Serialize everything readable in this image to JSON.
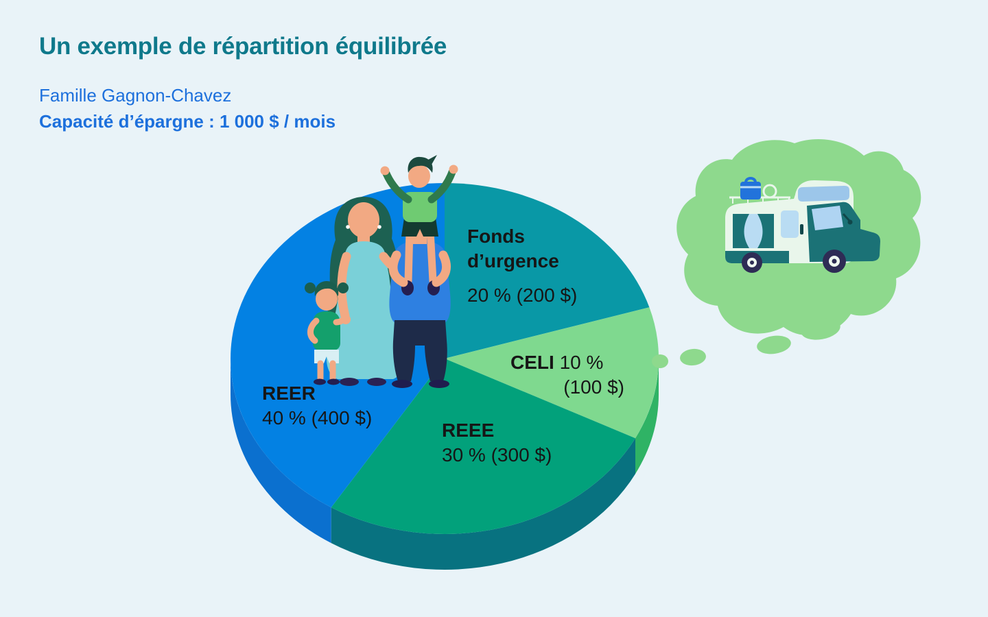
{
  "theme": {
    "bg": "#E9F3F8",
    "title_color": "#0F798B",
    "subtitle_color": "#1D70DC",
    "label_color": "#161616",
    "bubble_green": "#8ED98D"
  },
  "header": {
    "title": "Un exemple de répartition équilibrée",
    "family": "Famille Gagnon-Chavez",
    "capacity": "Capacité d’épargne : 1 000 $ / mois"
  },
  "chart_data": {
    "type": "pie",
    "style": "3d-extruded",
    "title": "Un exemple de répartition équilibrée",
    "subtitle": "Famille Gagnon-Chavez — Capacité d’épargne : 1 000 $ / mois",
    "total": 1000,
    "unit": "$ / mois",
    "direction": "clockwise",
    "start_angle_deg": 0,
    "legend_position": "labels-on-slices",
    "slices": [
      {
        "label": "Fonds d’urgence",
        "percent": 20,
        "amount": 200,
        "value_label": "20 % (200 $)",
        "color": "#0998A6",
        "side_color": "#067582",
        "draw_from": 0,
        "draw_to": 73
      },
      {
        "label": "CELI",
        "percent": 10,
        "amount": 100,
        "value_label": "10 % (100 $)",
        "color": "#7FD98F",
        "side_color": "#2FB365",
        "draw_from": 73,
        "draw_to": 117
      },
      {
        "label": "REEE",
        "percent": 30,
        "amount": 300,
        "value_label": "30 % (300 $)",
        "color": "#02A17B",
        "side_color": "#087280",
        "draw_from": 117,
        "draw_to": 212
      },
      {
        "label": "REER",
        "percent": 40,
        "amount": 400,
        "value_label": "40 % (400 $)",
        "color": "#0381E3",
        "side_color": "#0B70CF",
        "draw_from": 212,
        "draw_to": 360
      }
    ]
  },
  "pie_labels": {
    "fonds_line1": "Fonds",
    "fonds_line2": "d’urgence",
    "fonds_value": "20 % (200 $)",
    "celi_name": "CELI",
    "celi_pct": "10 %",
    "celi_value": "(100 $)",
    "reee_name": "REEE",
    "reee_value": "30 % (300 $)",
    "reer_name": "REER",
    "reer_value": "40 % (400 $)"
  },
  "illustrations": {
    "family": "famille de quatre — parents, fillette et garçon sur les épaules du père",
    "thought_bubble": "bulle de pensée verte",
    "rv": "véhicule récréatif (VR) de camping"
  }
}
